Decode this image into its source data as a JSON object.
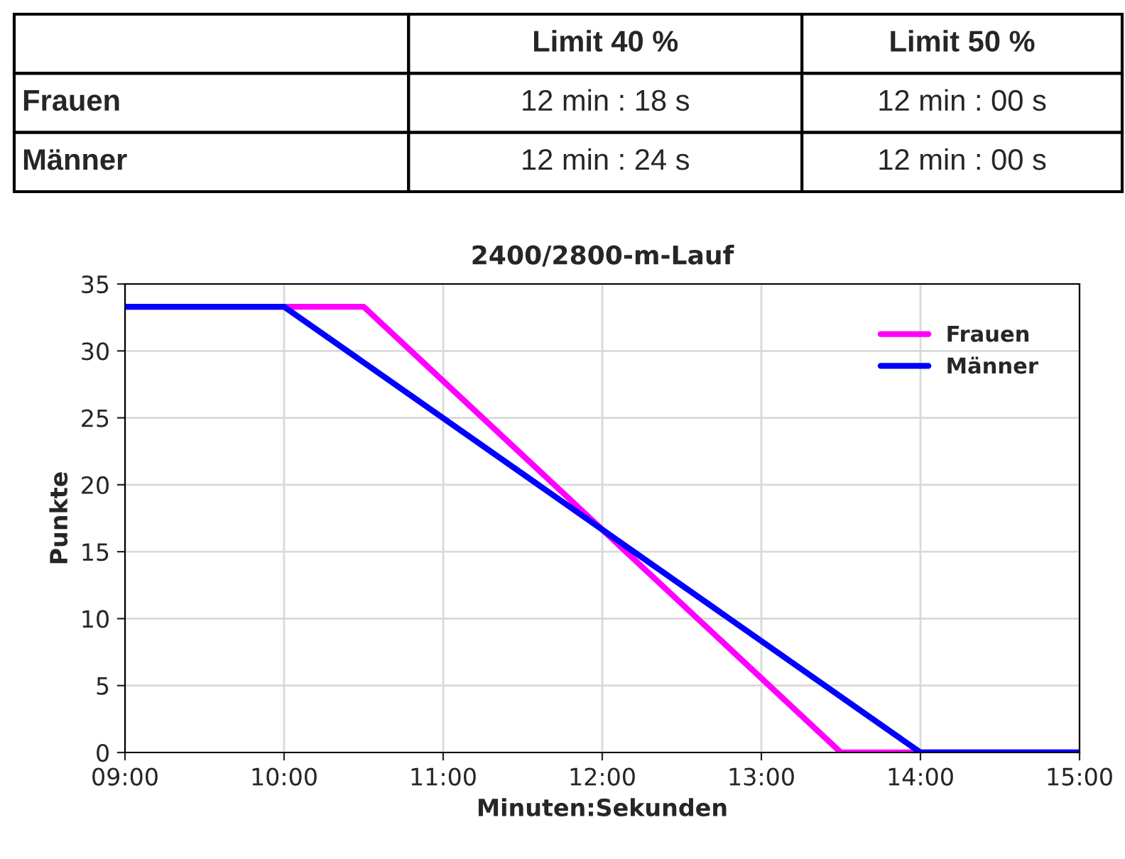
{
  "chart_data": {
    "type": "line",
    "title": "2400/2800-m-Lauf",
    "xlabel": "Minuten:Sekunden",
    "ylabel": "Punkte",
    "annotations": [
      "Limit 40 %",
      "Limit 50 %",
      "Frauen",
      "12 min : 18 s",
      "12 min : 00 s",
      "Männer",
      "12 min : 24 s",
      "12 min : 00 s"
    ],
    "series": [
      {
        "name": "Frauen",
        "color": "#ff00ff",
        "x": [
          9,
          10.5,
          13.5,
          15
        ],
        "values": [
          33.3,
          33.3,
          0,
          0
        ]
      },
      {
        "name": "Männer",
        "color": "#0000ff",
        "x": [
          9,
          10,
          14,
          15
        ],
        "values": [
          33.3,
          33.3,
          0,
          0
        ]
      }
    ],
    "xlim": [
      9,
      15
    ],
    "xticks": [
      {
        "value": 9,
        "label": "09:00"
      },
      {
        "value": 10,
        "label": "10:00"
      },
      {
        "value": 11,
        "label": "11:00"
      },
      {
        "value": 12,
        "label": "12:00"
      },
      {
        "value": 13,
        "label": "13:00"
      },
      {
        "value": 14,
        "label": "14:00"
      },
      {
        "value": 15,
        "label": "15:00"
      }
    ],
    "ylim": [
      0,
      35
    ],
    "yticks": [
      0,
      5,
      10,
      15,
      20,
      25,
      30,
      35
    ],
    "grid": true,
    "legend": "top right",
    "marker": "none",
    "line_style": "solid"
  }
}
